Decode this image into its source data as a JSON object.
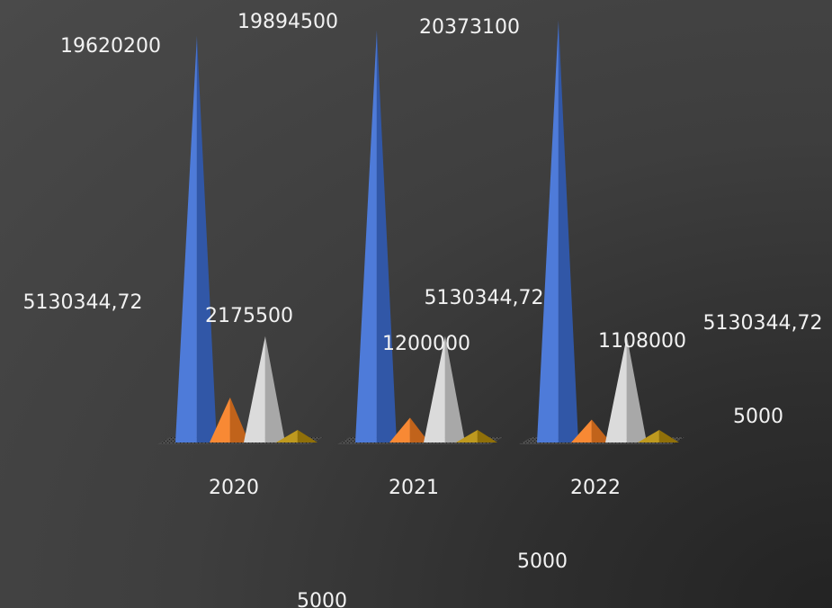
{
  "chart_data": {
    "type": "bar",
    "subtype": "3d-pyramid-clustered",
    "categories": [
      "2020",
      "2021",
      "2022"
    ],
    "series": [
      {
        "color": "#3f6fd6",
        "values": [
          19620200,
          19894500,
          20373100
        ]
      },
      {
        "color": "#f77f22",
        "values": [
          2175500,
          1200000,
          1108000
        ]
      },
      {
        "color": "#d8d8d8",
        "values": [
          5130344.72,
          5130344.72,
          5130344.72
        ]
      },
      {
        "color": "#b8900c",
        "values": [
          5000,
          5000,
          5000
        ]
      }
    ],
    "data_labels": [
      [
        "19620200",
        "19894500",
        "20373100"
      ],
      [
        "2175500",
        "1200000",
        "1108000"
      ],
      [
        "5130344,72",
        "5130344,72",
        "5130344,72"
      ],
      [
        "5000",
        "5000",
        "5000"
      ]
    ],
    "ylim": [
      0,
      21000000
    ],
    "grid": false,
    "legend": "none",
    "background": "#3f3f3f"
  }
}
